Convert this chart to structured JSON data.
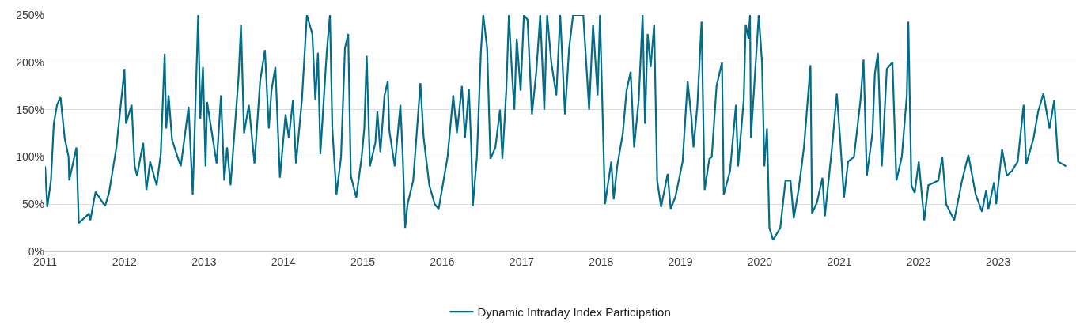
{
  "chart_data": {
    "type": "line",
    "x": [
      "2011-01-01",
      "2011-01-11",
      "2011-01-28",
      "2011-02-10",
      "2011-02-25",
      "2011-03-13",
      "2011-04-01",
      "2011-04-19",
      "2011-04-22",
      "2011-05-25",
      "2011-06-05",
      "2011-07-22",
      "2011-07-28",
      "2011-08-21",
      "2011-10-04",
      "2011-10-22",
      "2011-11-25",
      "2012-01-01",
      "2012-01-08",
      "2012-02-03",
      "2012-02-17",
      "2012-02-28",
      "2012-03-27",
      "2012-04-11",
      "2012-04-28",
      "2012-05-28",
      "2012-06-16",
      "2012-07-04",
      "2012-07-11",
      "2012-07-22",
      "2012-08-07",
      "2012-08-28",
      "2012-09-16",
      "2012-10-22",
      "2012-11-10",
      "2012-12-05",
      "2012-12-15",
      "2012-12-27",
      "2013-01-08",
      "2013-01-15",
      "2013-02-28",
      "2013-03-20",
      "2013-04-04",
      "2013-04-17",
      "2013-05-03",
      "2013-06-09",
      "2013-06-20",
      "2013-07-04",
      "2013-07-26",
      "2013-08-21",
      "2013-09-16",
      "2013-10-08",
      "2013-10-26",
      "2013-11-07",
      "2013-11-25",
      "2013-12-16",
      "2014-01-11",
      "2014-01-26",
      "2014-02-14",
      "2014-02-28",
      "2014-03-27",
      "2014-04-19",
      "2014-05-14",
      "2014-05-28",
      "2014-06-09",
      "2014-06-20",
      "2014-07-19",
      "2014-08-03",
      "2014-08-14",
      "2014-09-02",
      "2014-09-23",
      "2014-10-11",
      "2014-10-26",
      "2014-11-07",
      "2014-12-02",
      "2014-12-27",
      "2015-01-08",
      "2015-01-19",
      "2015-02-03",
      "2015-02-28",
      "2015-03-09",
      "2015-03-23",
      "2015-04-11",
      "2015-04-26",
      "2015-05-03",
      "2015-05-28",
      "2015-06-23",
      "2015-07-04",
      "2015-07-15",
      "2015-07-26",
      "2015-08-21",
      "2015-09-23",
      "2015-10-08",
      "2015-11-03",
      "2015-11-28",
      "2015-12-16",
      "2016-01-26",
      "2016-02-21",
      "2016-03-09",
      "2016-04-01",
      "2016-04-15",
      "2016-05-03",
      "2016-05-14",
      "2016-05-21",
      "2016-06-09",
      "2016-06-27",
      "2016-07-08",
      "2016-07-26",
      "2016-08-10",
      "2016-09-02",
      "2016-09-23",
      "2016-10-04",
      "2016-10-22",
      "2016-11-03",
      "2016-11-17",
      "2016-11-28",
      "2016-12-09",
      "2016-12-27",
      "2017-01-11",
      "2017-01-28",
      "2017-02-17",
      "2017-03-09",
      "2017-03-27",
      "2017-04-15",
      "2017-04-28",
      "2017-05-17",
      "2017-06-09",
      "2017-06-27",
      "2017-07-19",
      "2017-08-07",
      "2017-08-25",
      "2017-10-11",
      "2017-11-07",
      "2017-11-25",
      "2017-12-16",
      "2017-12-27",
      "2018-01-19",
      "2018-02-17",
      "2018-02-28",
      "2018-03-16",
      "2018-04-11",
      "2018-04-28",
      "2018-05-17",
      "2018-06-02",
      "2018-06-23",
      "2018-07-11",
      "2018-07-22",
      "2018-08-03",
      "2018-08-17",
      "2018-09-02",
      "2018-09-16",
      "2018-10-04",
      "2018-11-03",
      "2018-11-17",
      "2018-12-09",
      "2019-01-11",
      "2019-02-03",
      "2019-02-21",
      "2019-03-02",
      "2019-03-20",
      "2019-04-08",
      "2019-04-22",
      "2019-05-14",
      "2019-05-25",
      "2019-06-16",
      "2019-07-11",
      "2019-07-19",
      "2019-08-17",
      "2019-09-13",
      "2019-09-23",
      "2019-10-19",
      "2019-10-28",
      "2019-11-10",
      "2019-11-17",
      "2019-11-21",
      "2019-12-09",
      "2019-12-27",
      "2020-01-11",
      "2020-01-22",
      "2020-02-03",
      "2020-02-14",
      "2020-03-02",
      "2020-04-04",
      "2020-04-28",
      "2020-05-21",
      "2020-06-05",
      "2020-06-27",
      "2020-07-22",
      "2020-08-21",
      "2020-08-28",
      "2020-09-20",
      "2020-10-15",
      "2020-10-26",
      "2020-11-28",
      "2020-12-20",
      "2021-01-04",
      "2021-01-22",
      "2021-02-10",
      "2021-03-09",
      "2021-04-08",
      "2021-04-22",
      "2021-05-07",
      "2021-06-02",
      "2021-06-13",
      "2021-06-27",
      "2021-07-15",
      "2021-08-07",
      "2021-09-02",
      "2021-09-20",
      "2021-10-15",
      "2021-11-07",
      "2021-11-14",
      "2021-11-28",
      "2021-12-13",
      "2022-01-01",
      "2022-01-26",
      "2022-02-14",
      "2022-04-01",
      "2022-04-19",
      "2022-05-07",
      "2022-06-13",
      "2022-07-19",
      "2022-08-17",
      "2022-09-20",
      "2022-10-19",
      "2022-11-07",
      "2022-11-17",
      "2022-12-13",
      "2022-12-23",
      "2023-01-19",
      "2023-02-10",
      "2023-03-05",
      "2023-04-01",
      "2023-04-28",
      "2023-05-10",
      "2023-06-13",
      "2023-07-04",
      "2023-07-28",
      "2023-08-25",
      "2023-09-16",
      "2023-10-04",
      "2023-11-10"
    ],
    "series": [
      {
        "name": "Dynamic Intraday Index Participation",
        "color": "#006e8a",
        "values": [
          90,
          47,
          75,
          135,
          155,
          163,
          120,
          100,
          75,
          110,
          30,
          40,
          33,
          63,
          48,
          62,
          110,
          193,
          135,
          155,
          90,
          80,
          115,
          65,
          95,
          70,
          103,
          209,
          130,
          165,
          118,
          103,
          90,
          153,
          60,
          250,
          140,
          195,
          90,
          158,
          93,
          165,
          75,
          110,
          70,
          185,
          240,
          125,
          155,
          93,
          180,
          213,
          130,
          170,
          195,
          78,
          145,
          120,
          160,
          93,
          160,
          250,
          230,
          160,
          210,
          103,
          210,
          250,
          130,
          60,
          100,
          215,
          230,
          80,
          57,
          100,
          130,
          207,
          90,
          115,
          148,
          105,
          165,
          180,
          128,
          90,
          155,
          100,
          25,
          50,
          75,
          178,
          120,
          70,
          50,
          45,
          100,
          165,
          125,
          175,
          120,
          172,
          110,
          48,
          100,
          210,
          250,
          215,
          98,
          110,
          150,
          98,
          170,
          250,
          190,
          150,
          225,
          170,
          250,
          245,
          145,
          190,
          250,
          150,
          250,
          200,
          165,
          250,
          145,
          215,
          250,
          250,
          150,
          240,
          165,
          250,
          50,
          95,
          55,
          90,
          125,
          170,
          190,
          110,
          160,
          250,
          135,
          230,
          195,
          240,
          75,
          47,
          82,
          45,
          58,
          95,
          180,
          140,
          110,
          155,
          243,
          65,
          98,
          100,
          175,
          200,
          60,
          85,
          155,
          90,
          160,
          240,
          225,
          250,
          120,
          185,
          250,
          200,
          90,
          130,
          25,
          12,
          25,
          75,
          75,
          35,
          65,
          110,
          197,
          40,
          52,
          78,
          37,
          110,
          167,
          120,
          57,
          95,
          100,
          160,
          203,
          80,
          125,
          188,
          210,
          90,
          193,
          200,
          75,
          100,
          165,
          243,
          70,
          62,
          95,
          33,
          70,
          75,
          100,
          50,
          33,
          75,
          102,
          60,
          42,
          65,
          45,
          73,
          50,
          108,
          80,
          85,
          95,
          155,
          92,
          120,
          148,
          167,
          130,
          160,
          95,
          90
        ]
      }
    ],
    "xlim": [
      "2011-01-01",
      "2023-12-25"
    ],
    "xticks": [
      {
        "value": "2011",
        "label": "2011"
      },
      {
        "value": "2012",
        "label": "2012"
      },
      {
        "value": "2013",
        "label": "2013"
      },
      {
        "value": "2014",
        "label": "2014"
      },
      {
        "value": "2015",
        "label": "2015"
      },
      {
        "value": "2016",
        "label": "2016"
      },
      {
        "value": "2017",
        "label": "2017"
      },
      {
        "value": "2018",
        "label": "2018"
      },
      {
        "value": "2019",
        "label": "2019"
      },
      {
        "value": "2020",
        "label": "2020"
      },
      {
        "value": "2021",
        "label": "2021"
      },
      {
        "value": "2022",
        "label": "2022"
      },
      {
        "value": "2023",
        "label": "2023"
      }
    ],
    "ylim": [
      0,
      250
    ],
    "yticks": [
      {
        "value": 0,
        "label": "0%"
      },
      {
        "value": 50,
        "label": "50%"
      },
      {
        "value": 100,
        "label": "100%"
      },
      {
        "value": 150,
        "label": "150%"
      },
      {
        "value": 200,
        "label": "200%"
      },
      {
        "value": 250,
        "label": "250%"
      }
    ],
    "grid": "y",
    "legend": "bottom",
    "marker": "none",
    "line_style": "solid"
  }
}
